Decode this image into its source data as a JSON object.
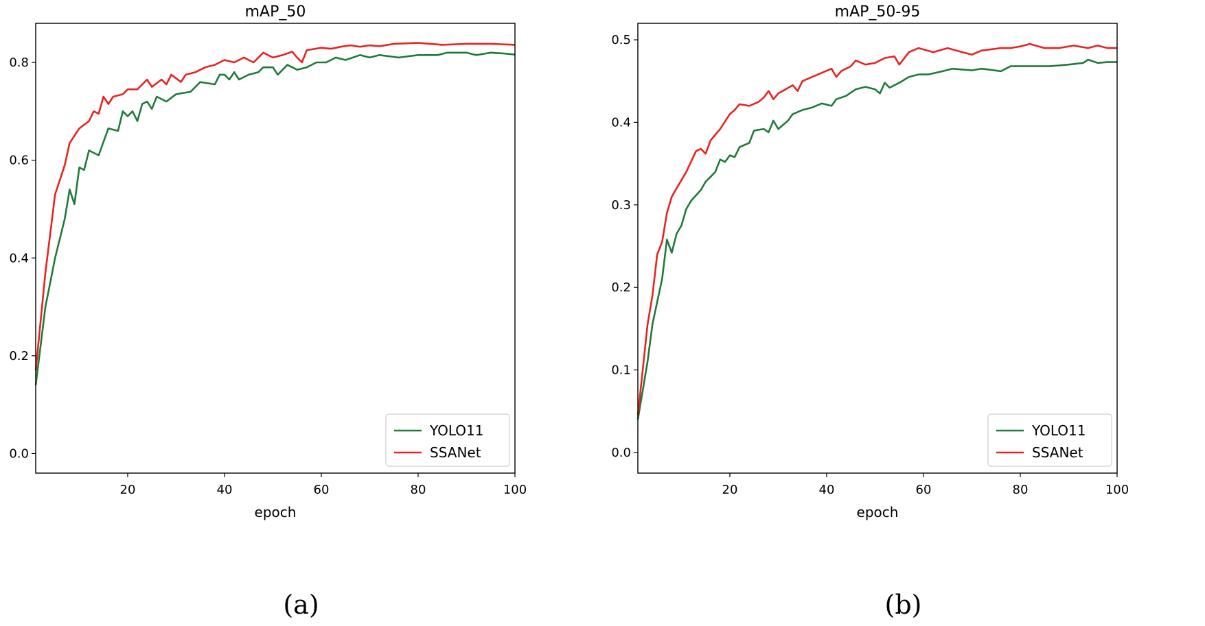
{
  "chart_data": [
    {
      "type": "line",
      "title": "mAP_50",
      "xlabel": "epoch",
      "ylabel": "",
      "caption": "(a)",
      "xlim": [
        1,
        100
      ],
      "ylim": [
        -0.04,
        0.88
      ],
      "xticks": [
        "20",
        "40",
        "60",
        "80",
        "100"
      ],
      "yticks": [
        "0.0",
        "0.2",
        "0.4",
        "0.6",
        "0.8"
      ],
      "legend_position": "bottom-right",
      "series": [
        {
          "name": "YOLO11",
          "color": "#1f7a3a",
          "anchors": [
            [
              1,
              0.14
            ],
            [
              3,
              0.3
            ],
            [
              5,
              0.4
            ],
            [
              7,
              0.48
            ],
            [
              8,
              0.54
            ],
            [
              9,
              0.51
            ],
            [
              10,
              0.585
            ],
            [
              11,
              0.58
            ],
            [
              12,
              0.62
            ],
            [
              14,
              0.61
            ],
            [
              16,
              0.665
            ],
            [
              18,
              0.66
            ],
            [
              19,
              0.7
            ],
            [
              20,
              0.69
            ],
            [
              21,
              0.7
            ],
            [
              22,
              0.68
            ],
            [
              23,
              0.715
            ],
            [
              24,
              0.72
            ],
            [
              25,
              0.705
            ],
            [
              26,
              0.73
            ],
            [
              28,
              0.72
            ],
            [
              30,
              0.735
            ],
            [
              33,
              0.74
            ],
            [
              35,
              0.76
            ],
            [
              38,
              0.755
            ],
            [
              39,
              0.775
            ],
            [
              40,
              0.775
            ],
            [
              41,
              0.765
            ],
            [
              42,
              0.78
            ],
            [
              43,
              0.765
            ],
            [
              45,
              0.775
            ],
            [
              47,
              0.78
            ],
            [
              48,
              0.79
            ],
            [
              50,
              0.79
            ],
            [
              51,
              0.775
            ],
            [
              53,
              0.795
            ],
            [
              55,
              0.785
            ],
            [
              57,
              0.79
            ],
            [
              59,
              0.8
            ],
            [
              61,
              0.8
            ],
            [
              63,
              0.81
            ],
            [
              65,
              0.805
            ],
            [
              68,
              0.815
            ],
            [
              70,
              0.81
            ],
            [
              72,
              0.815
            ],
            [
              76,
              0.81
            ],
            [
              80,
              0.815
            ],
            [
              84,
              0.815
            ],
            [
              86,
              0.82
            ],
            [
              90,
              0.82
            ],
            [
              92,
              0.815
            ],
            [
              95,
              0.82
            ],
            [
              98,
              0.818
            ],
            [
              100,
              0.816
            ]
          ]
        },
        {
          "name": "SSANet",
          "color": "#e8231f",
          "anchors": [
            [
              1,
              0.17
            ],
            [
              2,
              0.27
            ],
            [
              3,
              0.37
            ],
            [
              5,
              0.53
            ],
            [
              7,
              0.59
            ],
            [
              8,
              0.635
            ],
            [
              10,
              0.665
            ],
            [
              12,
              0.68
            ],
            [
              13,
              0.7
            ],
            [
              14,
              0.695
            ],
            [
              15,
              0.73
            ],
            [
              16,
              0.715
            ],
            [
              17,
              0.73
            ],
            [
              19,
              0.735
            ],
            [
              20,
              0.745
            ],
            [
              22,
              0.745
            ],
            [
              24,
              0.765
            ],
            [
              25,
              0.75
            ],
            [
              27,
              0.765
            ],
            [
              28,
              0.755
            ],
            [
              29,
              0.775
            ],
            [
              31,
              0.76
            ],
            [
              32,
              0.775
            ],
            [
              34,
              0.78
            ],
            [
              36,
              0.79
            ],
            [
              38,
              0.795
            ],
            [
              40,
              0.805
            ],
            [
              42,
              0.8
            ],
            [
              44,
              0.81
            ],
            [
              46,
              0.8
            ],
            [
              48,
              0.82
            ],
            [
              50,
              0.81
            ],
            [
              52,
              0.815
            ],
            [
              54,
              0.822
            ],
            [
              55,
              0.81
            ],
            [
              56,
              0.8
            ],
            [
              57,
              0.825
            ],
            [
              60,
              0.83
            ],
            [
              62,
              0.828
            ],
            [
              64,
              0.832
            ],
            [
              66,
              0.835
            ],
            [
              68,
              0.832
            ],
            [
              70,
              0.835
            ],
            [
              72,
              0.833
            ],
            [
              75,
              0.838
            ],
            [
              80,
              0.84
            ],
            [
              85,
              0.836
            ],
            [
              90,
              0.838
            ],
            [
              95,
              0.838
            ],
            [
              100,
              0.836
            ]
          ]
        }
      ]
    },
    {
      "type": "line",
      "title": "mAP_50-95",
      "xlabel": "epoch",
      "ylabel": "",
      "caption": "(b)",
      "xlim": [
        1,
        100
      ],
      "ylim": [
        -0.025,
        0.52
      ],
      "xticks": [
        "20",
        "40",
        "60",
        "80",
        "100"
      ],
      "yticks": [
        "0.0",
        "0.1",
        "0.2",
        "0.3",
        "0.4",
        "0.5"
      ],
      "legend_position": "bottom-right",
      "series": [
        {
          "name": "YOLO11",
          "color": "#1f7a3a",
          "anchors": [
            [
              1,
              0.04
            ],
            [
              3,
              0.11
            ],
            [
              4,
              0.155
            ],
            [
              6,
              0.21
            ],
            [
              7,
              0.258
            ],
            [
              8,
              0.242
            ],
            [
              9,
              0.265
            ],
            [
              10,
              0.275
            ],
            [
              11,
              0.295
            ],
            [
              12,
              0.305
            ],
            [
              14,
              0.318
            ],
            [
              15,
              0.328
            ],
            [
              17,
              0.34
            ],
            [
              18,
              0.355
            ],
            [
              19,
              0.352
            ],
            [
              20,
              0.36
            ],
            [
              21,
              0.358
            ],
            [
              22,
              0.37
            ],
            [
              24,
              0.375
            ],
            [
              25,
              0.39
            ],
            [
              27,
              0.392
            ],
            [
              28,
              0.388
            ],
            [
              29,
              0.402
            ],
            [
              30,
              0.392
            ],
            [
              32,
              0.402
            ],
            [
              33,
              0.41
            ],
            [
              35,
              0.415
            ],
            [
              37,
              0.418
            ],
            [
              39,
              0.423
            ],
            [
              41,
              0.42
            ],
            [
              42,
              0.428
            ],
            [
              44,
              0.432
            ],
            [
              46,
              0.44
            ],
            [
              48,
              0.443
            ],
            [
              50,
              0.44
            ],
            [
              51,
              0.435
            ],
            [
              52,
              0.448
            ],
            [
              53,
              0.442
            ],
            [
              55,
              0.448
            ],
            [
              57,
              0.455
            ],
            [
              59,
              0.458
            ],
            [
              61,
              0.458
            ],
            [
              64,
              0.462
            ],
            [
              66,
              0.465
            ],
            [
              70,
              0.463
            ],
            [
              72,
              0.465
            ],
            [
              76,
              0.462
            ],
            [
              78,
              0.468
            ],
            [
              82,
              0.468
            ],
            [
              86,
              0.468
            ],
            [
              90,
              0.47
            ],
            [
              93,
              0.472
            ],
            [
              94,
              0.476
            ],
            [
              96,
              0.472
            ],
            [
              98,
              0.473
            ],
            [
              100,
              0.473
            ]
          ]
        },
        {
          "name": "SSANet",
          "color": "#e8231f",
          "anchors": [
            [
              1,
              0.045
            ],
            [
              2,
              0.1
            ],
            [
              3,
              0.155
            ],
            [
              4,
              0.19
            ],
            [
              5,
              0.24
            ],
            [
              6,
              0.255
            ],
            [
              7,
              0.29
            ],
            [
              8,
              0.31
            ],
            [
              10,
              0.33
            ],
            [
              11,
              0.34
            ],
            [
              13,
              0.365
            ],
            [
              14,
              0.368
            ],
            [
              15,
              0.362
            ],
            [
              16,
              0.378
            ],
            [
              18,
              0.392
            ],
            [
              20,
              0.41
            ],
            [
              21,
              0.415
            ],
            [
              22,
              0.422
            ],
            [
              24,
              0.42
            ],
            [
              26,
              0.425
            ],
            [
              27,
              0.43
            ],
            [
              28,
              0.438
            ],
            [
              29,
              0.428
            ],
            [
              30,
              0.435
            ],
            [
              33,
              0.445
            ],
            [
              34,
              0.438
            ],
            [
              35,
              0.45
            ],
            [
              37,
              0.455
            ],
            [
              39,
              0.46
            ],
            [
              41,
              0.465
            ],
            [
              42,
              0.455
            ],
            [
              43,
              0.462
            ],
            [
              45,
              0.468
            ],
            [
              46,
              0.475
            ],
            [
              48,
              0.47
            ],
            [
              50,
              0.472
            ],
            [
              52,
              0.478
            ],
            [
              54,
              0.48
            ],
            [
              55,
              0.47
            ],
            [
              57,
              0.485
            ],
            [
              59,
              0.49
            ],
            [
              62,
              0.485
            ],
            [
              65,
              0.49
            ],
            [
              68,
              0.485
            ],
            [
              70,
              0.482
            ],
            [
              72,
              0.487
            ],
            [
              76,
              0.49
            ],
            [
              78,
              0.49
            ],
            [
              80,
              0.492
            ],
            [
              82,
              0.495
            ],
            [
              85,
              0.49
            ],
            [
              88,
              0.49
            ],
            [
              91,
              0.493
            ],
            [
              94,
              0.49
            ],
            [
              96,
              0.493
            ],
            [
              98,
              0.49
            ],
            [
              100,
              0.49
            ]
          ]
        }
      ]
    }
  ]
}
